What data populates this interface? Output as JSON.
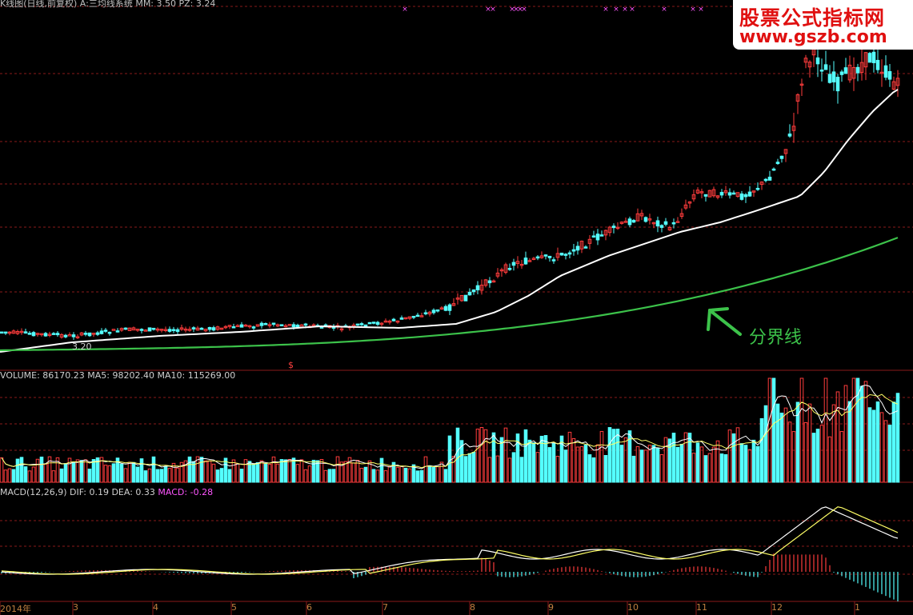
{
  "top_bar": {
    "title_text": "K线图(日线,前复权) A:三均线系统 MM: 3.50 PZ: 3.24"
  },
  "watermark": {
    "line1": "股票公式指标网",
    "line2": "www.gszb.com"
  },
  "annotation": {
    "text": "分界线",
    "arrow_icon": "arrow-up-left-icon"
  },
  "price_panel": {
    "low_price_label": "3.20",
    "marker_symbol": "$"
  },
  "volume_panel": {
    "label_prefix": "VOLUME:",
    "volume_value": "86170.23",
    "ma5_label": "MA5:",
    "ma5_value": "98202.40",
    "ma10_label": "MA10:",
    "ma10_value": "115269.00"
  },
  "macd_panel": {
    "label_prefix": "MACD(12,26,9)",
    "dif_label": "DIF:",
    "dif_value": "0.19",
    "dea_label": "DEA:",
    "dea_value": "0.33",
    "macd_label": "MACD:",
    "macd_value": "-0.28"
  },
  "x_axis": {
    "year_label": "2014年",
    "months": [
      "3",
      "4",
      "5",
      "6",
      "7",
      "8",
      "9",
      "10",
      "11",
      "12",
      "1"
    ]
  },
  "colors": {
    "up_candle": "#ff3c3c",
    "down_candle": "#54ffff",
    "ma_white": "#ffffff",
    "ma_green": "#3cc24a",
    "grid_red": "#8a1a1a",
    "macd_purple": "#ff55ff",
    "dea_yellow": "#ffff66",
    "axis_label": "#c08040"
  },
  "chart_data": {
    "type": "candlestick",
    "note_series": [
      "candles",
      "ma_white",
      "ma_green_boundary",
      "volume",
      "macd"
    ],
    "trend_samples": [
      3.2,
      3.3,
      3.3,
      3.4,
      3.5,
      3.5,
      3.6,
      4.5,
      5.2,
      5.4,
      6.1,
      8.5,
      8.0
    ]
  }
}
